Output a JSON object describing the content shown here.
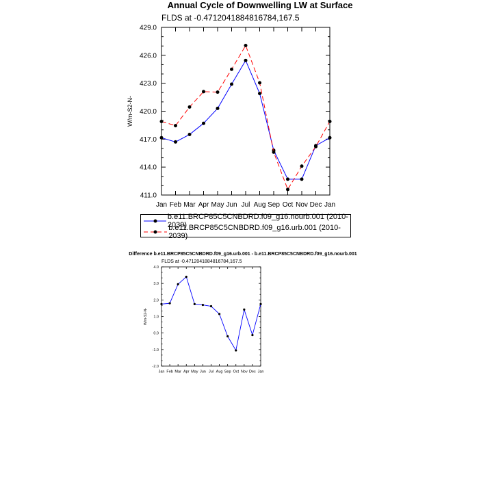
{
  "chart_data": [
    {
      "type": "line",
      "title": "Annual Cycle of Downwelling LW at Surface",
      "subtitle": "FLDS at -0.4712041884816784,167.5",
      "ylabel": "W/m-S2-N-",
      "xlabel": "",
      "categories": [
        "Jan",
        "Feb",
        "Mar",
        "Apr",
        "May",
        "Jun",
        "Jul",
        "Aug",
        "Sep",
        "Oct",
        "Nov",
        "Dec",
        "Jan"
      ],
      "ylim": [
        411.0,
        429.0
      ],
      "yticks": [
        "411.0",
        "414.0",
        "417.0",
        "420.0",
        "423.0",
        "426.0",
        "429.0"
      ],
      "legend_placement": "below",
      "series": [
        {
          "name": "b.e11.BRCP85C5CNBDRD.f09_g16.nourb.001 (2010-2039)",
          "color": "#0000ff",
          "dash": "solid",
          "values": [
            417.15,
            416.7,
            417.5,
            418.7,
            420.3,
            422.9,
            425.45,
            421.9,
            415.8,
            412.7,
            412.7,
            416.3,
            417.15
          ]
        },
        {
          "name": "b.e11.BRCP85C5CNBDRD.f09_g16.urb.001 (2010-2039)",
          "color": "#ff0000",
          "dash": "dashed",
          "values": [
            418.9,
            418.45,
            420.45,
            422.1,
            422.05,
            424.5,
            427.05,
            423.05,
            415.6,
            411.6,
            414.1,
            416.2,
            418.9
          ]
        }
      ]
    },
    {
      "type": "line",
      "title": "Difference b.e11.BRCP85C5CNBDRD.f09_g16.urb.001 - b.e11.BRCP85C5CNBDRD.f09_g16.nourb.001",
      "subtitle": "FLDS at -0.4712041884816784,167.5",
      "ylabel": "W/m-S2-N-",
      "xlabel": "",
      "categories": [
        "Jan",
        "Feb",
        "Mar",
        "Apr",
        "May",
        "Jun",
        "Jul",
        "Aug",
        "Sep",
        "Oct",
        "Nov",
        "Dec",
        "Jan"
      ],
      "ylim": [
        -2.0,
        4.0
      ],
      "yticks": [
        "-2.0",
        "-1.0",
        "0.0",
        "1.0",
        "2.0",
        "3.0",
        "4.0"
      ],
      "series": [
        {
          "name": "",
          "color": "#0000ff",
          "dash": "solid",
          "values": [
            1.75,
            1.8,
            2.95,
            3.4,
            1.75,
            1.7,
            1.62,
            1.15,
            -0.2,
            -1.05,
            1.42,
            -0.12,
            1.75
          ]
        }
      ]
    }
  ]
}
